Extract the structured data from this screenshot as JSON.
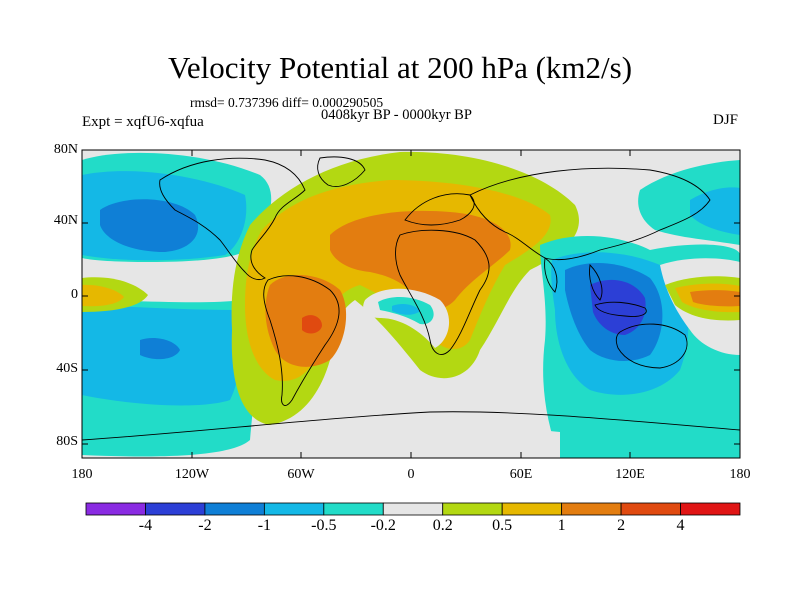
{
  "header": {
    "title": "Velocity Potential at 200 hPa (km2/s)",
    "stats": "rmsd= 0.737396 diff= 0.000290505",
    "period": "0408kyr BP - 0000kyr BP",
    "experiment": "Expt = xqfU6-xqfua",
    "season": "DJF"
  },
  "axes": {
    "lat_ticks": [
      "80N",
      "40N",
      "0",
      "40S",
      "80S"
    ],
    "lon_ticks": [
      "180",
      "120W",
      "60W",
      "0",
      "60E",
      "120E",
      "180"
    ]
  },
  "colorbar": {
    "labels": [
      "-4",
      "-2",
      "-1",
      "-0.5",
      "-0.2",
      "0.2",
      "0.5",
      "1",
      "2",
      "4"
    ],
    "colors": [
      "#8a2be2",
      "#2c3fd6",
      "#0f7fd6",
      "#14b8e6",
      "#22dcc8",
      "#e6e6e6",
      "#b3d812",
      "#e6b800",
      "#e37d10",
      "#e04a10",
      "#e01515"
    ]
  }
}
